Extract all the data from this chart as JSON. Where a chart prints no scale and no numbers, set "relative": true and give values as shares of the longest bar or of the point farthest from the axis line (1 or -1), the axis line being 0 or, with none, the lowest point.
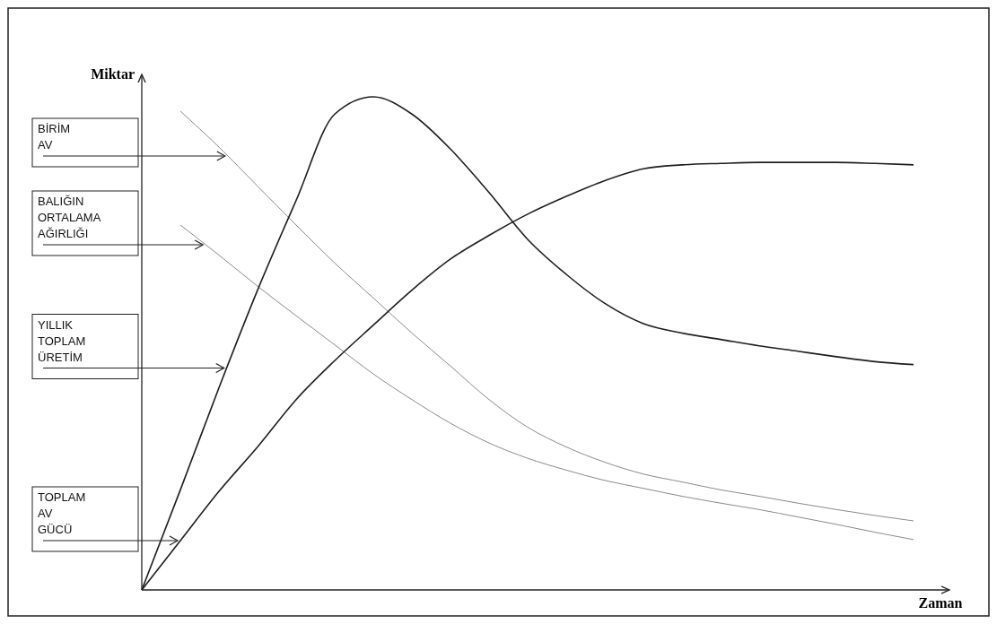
{
  "chart_data": {
    "type": "line",
    "relative": true,
    "xlabel": "Zaman",
    "ylabel": "Miktar",
    "categories": [
      null,
      null,
      null,
      null,
      null,
      null,
      null,
      null,
      null,
      null,
      null,
      null,
      null,
      null,
      null,
      null,
      null,
      null,
      null,
      null,
      null
    ],
    "series": [
      {
        "name": "BİRİM AV",
        "color": "#8a8a8a",
        "values": [
          null,
          0.971,
          0.898,
          0.819,
          0.74,
          0.663,
          0.592,
          0.521,
          0.454,
          0.386,
          0.33,
          0.29,
          0.259,
          0.235,
          0.219,
          0.203,
          0.19,
          0.176,
          0.163,
          0.151,
          0.14
        ]
      },
      {
        "name": "BALIĞIN ORTALAMA AĞIRLIĞI",
        "color": "#8a8a8a",
        "values": [
          null,
          0.74,
          0.679,
          0.616,
          0.556,
          0.497,
          0.438,
          0.386,
          0.338,
          0.298,
          0.267,
          0.243,
          0.222,
          0.206,
          0.19,
          0.176,
          0.163,
          0.148,
          0.133,
          0.117,
          0.102
        ]
      },
      {
        "name": "YILLIK TOPLAM ÜRETİM",
        "color": "#1e1e1e",
        "values": [
          0,
          0.203,
          0.41,
          0.608,
          0.79,
          0.965,
          1.0,
          0.965,
          0.894,
          0.806,
          0.711,
          0.64,
          0.581,
          0.54,
          0.521,
          0.508,
          0.495,
          0.484,
          0.473,
          0.463,
          0.457
        ]
      },
      {
        "name": "TOPLAM AV GÜCÜ",
        "color": "#1e1e1e",
        "values": [
          0,
          0.1,
          0.2,
          0.29,
          0.386,
          0.465,
          0.537,
          0.608,
          0.671,
          0.719,
          0.762,
          0.798,
          0.83,
          0.854,
          0.862,
          0.865,
          0.867,
          0.867,
          0.867,
          0.865,
          0.862
        ]
      }
    ]
  }
}
